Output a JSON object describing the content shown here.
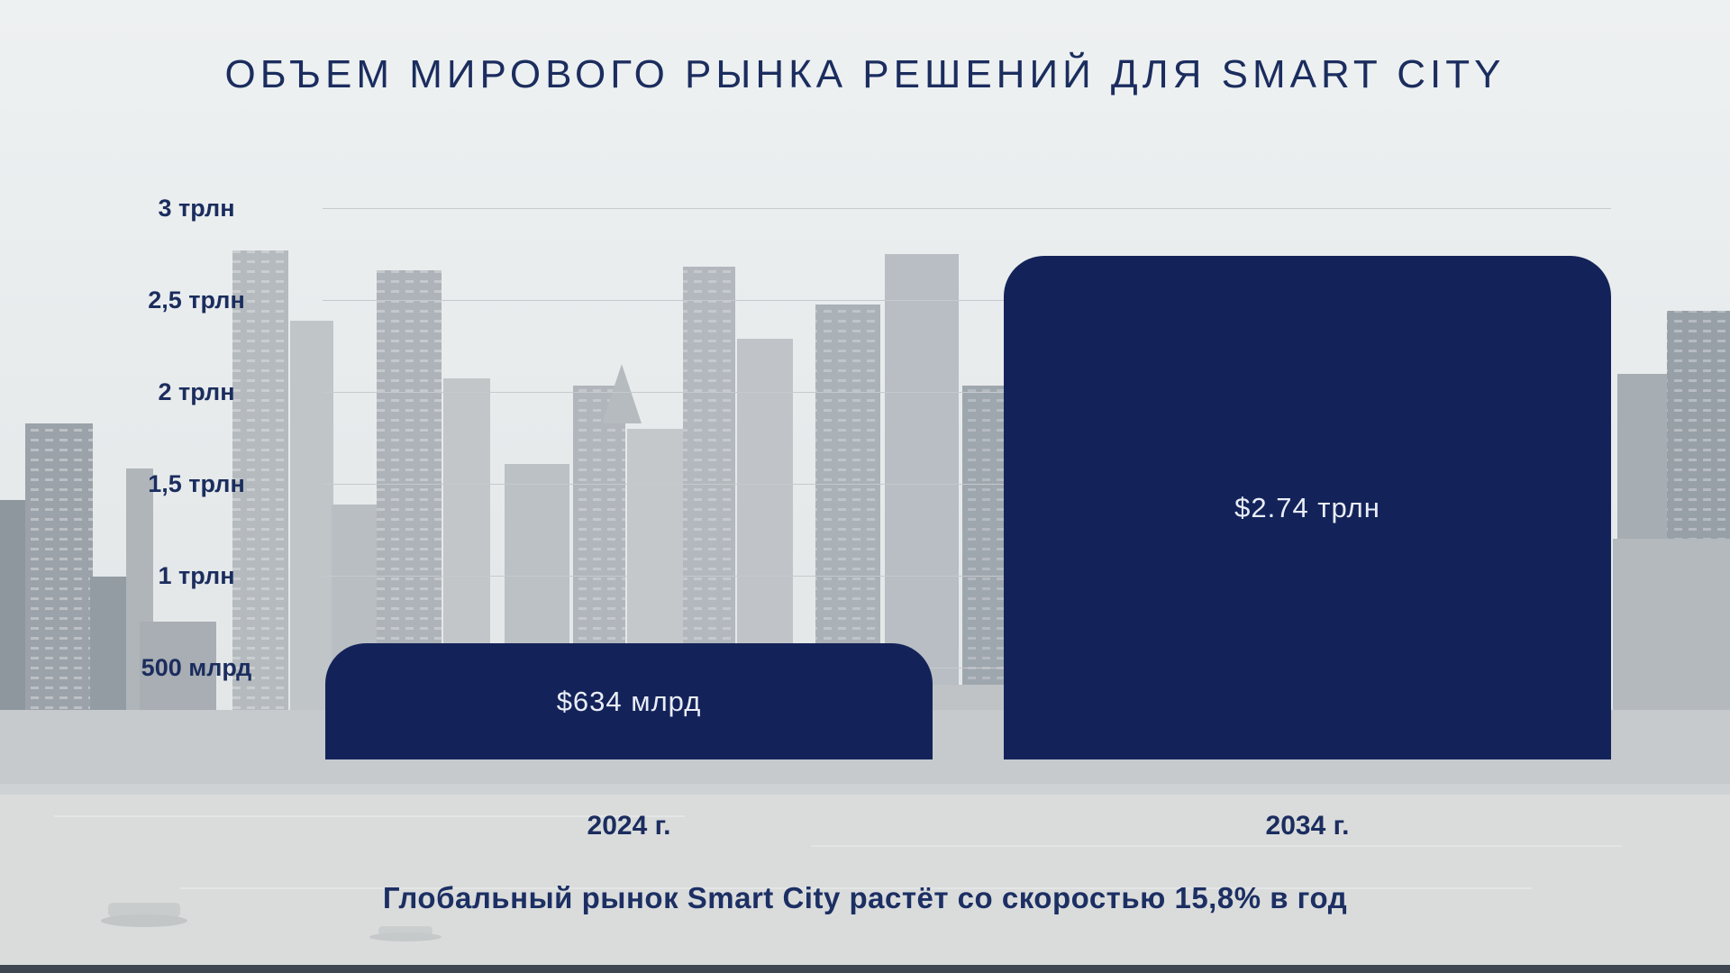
{
  "slide": {
    "title": "ОБЪЕМ МИРОВОГО РЫНКА РЕШЕНИЙ ДЛЯ SMART CITY",
    "subtitle": "Глобальный рынок Smart City растёт со скоростью 15,8% в год"
  },
  "chart_data": {
    "type": "bar",
    "title": "ОБЪЕМ МИРОВОГО РЫНКА РЕШЕНИЙ ДЛЯ SMART CITY",
    "annotation": "Глобальный рынок Smart City растёт со скоростью 15,8% в год",
    "categories": [
      "2024 г.",
      "2034 г."
    ],
    "values": [
      634,
      2740
    ],
    "values_unit": "млрд USD",
    "bar_labels": [
      "$634 млрд",
      "$2.74 трлн"
    ],
    "ylim": [
      0,
      3000
    ],
    "y_ticks": [
      {
        "label": "500 млрд",
        "value": 500
      },
      {
        "label": "1 трлн",
        "value": 1000
      },
      {
        "label": "1,5 трлн",
        "value": 1500
      },
      {
        "label": "2 трлн",
        "value": 2000
      },
      {
        "label": "2,5 трлн",
        "value": 2500
      },
      {
        "label": "3 трлн",
        "value": 3000
      }
    ],
    "grid": true,
    "legend": "none"
  },
  "colors": {
    "bar": "#13235a",
    "title_text": "#1b2d5e",
    "axis_text": "#1b2d5e",
    "bar_label_text": "#e9edf6",
    "gridline": "#c5cacd",
    "background": "#e8eced",
    "bottom_strip": "#3e4651"
  }
}
